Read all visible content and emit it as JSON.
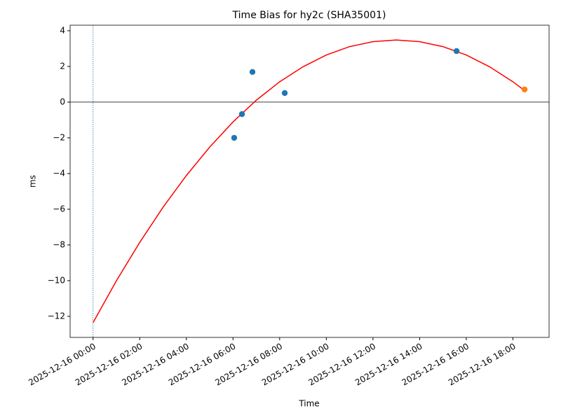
{
  "chart_data": {
    "type": "scatter",
    "title": "Time Bias for hy2c (SHA35001)",
    "xlabel": "Time",
    "ylabel": "ms",
    "xlim": [
      "2025-12-15 23:01",
      "2025-12-16 19:33"
    ],
    "ylim": [
      -13.18,
      4.31
    ],
    "xticks": [
      "2025-12-16 00:00",
      "2025-12-16 02:00",
      "2025-12-16 04:00",
      "2025-12-16 06:00",
      "2025-12-16 08:00",
      "2025-12-16 10:00",
      "2025-12-16 12:00",
      "2025-12-16 14:00",
      "2025-12-16 16:00",
      "2025-12-16 18:00"
    ],
    "yticks": [
      {
        "value": -12,
        "label": "−12"
      },
      {
        "value": -10,
        "label": "−10"
      },
      {
        "value": -8,
        "label": "−8"
      },
      {
        "value": -6,
        "label": "−6"
      },
      {
        "value": -4,
        "label": "−4"
      },
      {
        "value": -2,
        "label": "−2"
      },
      0,
      2,
      4
    ],
    "hline": 0,
    "hline_color": "#000000",
    "vline": "2025-12-16 00:00",
    "vline_color": "#1f77b4",
    "series": [
      {
        "type": "line",
        "color": "#ff0000",
        "x": [
          "2025-12-16 00:00",
          "2025-12-16 01:00",
          "2025-12-16 02:00",
          "2025-12-16 03:00",
          "2025-12-16 04:00",
          "2025-12-16 05:00",
          "2025-12-16 06:00",
          "2025-12-16 07:00",
          "2025-12-16 08:00",
          "2025-12-16 09:00",
          "2025-12-16 10:00",
          "2025-12-16 11:00",
          "2025-12-16 12:00",
          "2025-12-16 13:00",
          "2025-12-16 14:00",
          "2025-12-16 15:00",
          "2025-12-16 16:00",
          "2025-12-16 17:00",
          "2025-12-16 18:00",
          "2025-12-16 18:30"
        ],
        "values": [
          -12.35,
          -10.01,
          -7.86,
          -5.89,
          -4.11,
          -2.52,
          -1.11,
          0.11,
          1.14,
          1.98,
          2.64,
          3.11,
          3.39,
          3.48,
          3.39,
          3.11,
          2.64,
          1.98,
          1.14,
          0.65
        ]
      },
      {
        "type": "scatter",
        "color": "#1f77b4",
        "x": [
          "2025-12-16 06:03",
          "2025-12-16 06:23",
          "2025-12-16 06:50",
          "2025-12-16 08:13",
          "2025-12-16 15:35"
        ],
        "values": [
          -2.0,
          -0.67,
          1.69,
          0.51,
          2.86
        ]
      },
      {
        "type": "scatter",
        "color": "#ff7f0e",
        "x": [
          "2025-12-16 18:30"
        ],
        "values": [
          0.71
        ]
      }
    ]
  }
}
